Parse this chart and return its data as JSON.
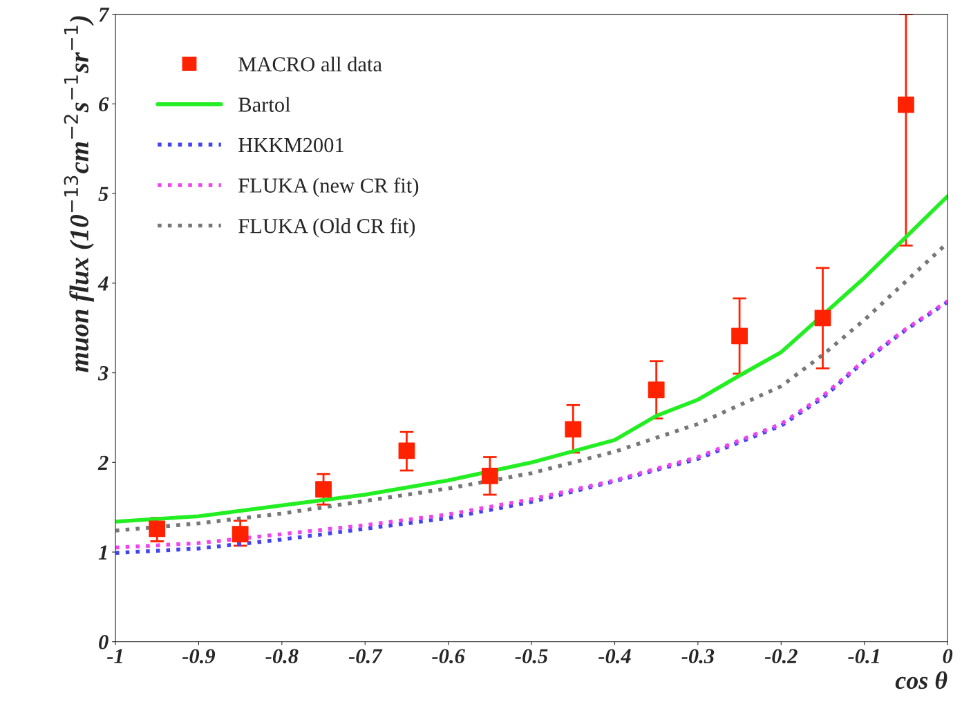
{
  "chart_data": {
    "type": "line",
    "xlabel": "cos θ",
    "ylabel": "muon flux (10$^{−13}$cm$^{−2}$s$^{−1}$sr$^{−1}$)",
    "xlim": [
      -1,
      0
    ],
    "xticks": [
      -1,
      -0.9,
      -0.8,
      -0.7,
      -0.6,
      -0.5,
      -0.4,
      -0.3,
      -0.2,
      -0.1,
      0
    ],
    "ylim": [
      0,
      7
    ],
    "yticks": [
      0,
      1,
      2,
      3,
      4,
      5,
      6,
      7
    ],
    "grid": false,
    "legend": "top left",
    "series": [
      {
        "name": "MACRO all data",
        "type": "scatter",
        "marker": "square",
        "color": "#ff2200",
        "x": [
          -0.95,
          -0.85,
          -0.75,
          -0.65,
          -0.55,
          -0.45,
          -0.35,
          -0.25,
          -0.15,
          -0.05
        ],
        "values": [
          1.26,
          1.2,
          1.7,
          2.13,
          1.85,
          2.37,
          2.81,
          3.41,
          3.61,
          5.99
        ],
        "errors": [
          [
            1.12,
            1.38
          ],
          [
            1.07,
            1.35
          ],
          [
            1.53,
            1.87
          ],
          [
            1.91,
            2.34
          ],
          [
            1.64,
            2.06
          ],
          [
            2.11,
            2.64
          ],
          [
            2.49,
            3.13
          ],
          [
            2.99,
            3.83
          ],
          [
            3.05,
            4.17
          ],
          [
            4.42,
            7.0
          ]
        ]
      },
      {
        "name": "Bartol",
        "line_style": "solid",
        "color": "#22ee22",
        "x": [
          -1,
          -0.9,
          -0.8,
          -0.7,
          -0.6,
          -0.5,
          -0.4,
          -0.35,
          -0.3,
          -0.25,
          -0.2,
          -0.1,
          0
        ],
        "values": [
          1.34,
          1.4,
          1.52,
          1.64,
          1.8,
          2.0,
          2.25,
          2.52,
          2.7,
          2.97,
          3.23,
          4.06,
          4.97
        ]
      },
      {
        "name": "HKKM2001",
        "line_style": "dotted",
        "color": "#4444ee",
        "x": [
          -1,
          -0.9,
          -0.8,
          -0.7,
          -0.6,
          -0.5,
          -0.4,
          -0.3,
          -0.2,
          -0.15,
          -0.1,
          -0.05,
          0
        ],
        "values": [
          0.99,
          1.04,
          1.14,
          1.26,
          1.38,
          1.56,
          1.79,
          2.04,
          2.41,
          2.72,
          3.13,
          3.48,
          3.79
        ]
      },
      {
        "name": "FLUKA (new CR fit)",
        "line_style": "dotted",
        "color": "#ee44ee",
        "x": [
          -1,
          -0.9,
          -0.8,
          -0.7,
          -0.6,
          -0.5,
          -0.4,
          -0.3,
          -0.2,
          -0.15,
          -0.1,
          -0.05,
          0
        ],
        "values": [
          1.05,
          1.1,
          1.2,
          1.3,
          1.42,
          1.59,
          1.8,
          2.06,
          2.43,
          2.74,
          3.14,
          3.49,
          3.8
        ]
      },
      {
        "name": "FLUKA (Old CR fit)",
        "line_style": "dotted",
        "color": "#777777",
        "x": [
          -1,
          -0.9,
          -0.8,
          -0.7,
          -0.6,
          -0.5,
          -0.4,
          -0.3,
          -0.2,
          -0.15,
          -0.1,
          0
        ],
        "values": [
          1.24,
          1.32,
          1.43,
          1.57,
          1.71,
          1.88,
          2.12,
          2.43,
          2.85,
          3.2,
          3.59,
          4.45
        ]
      }
    ]
  }
}
